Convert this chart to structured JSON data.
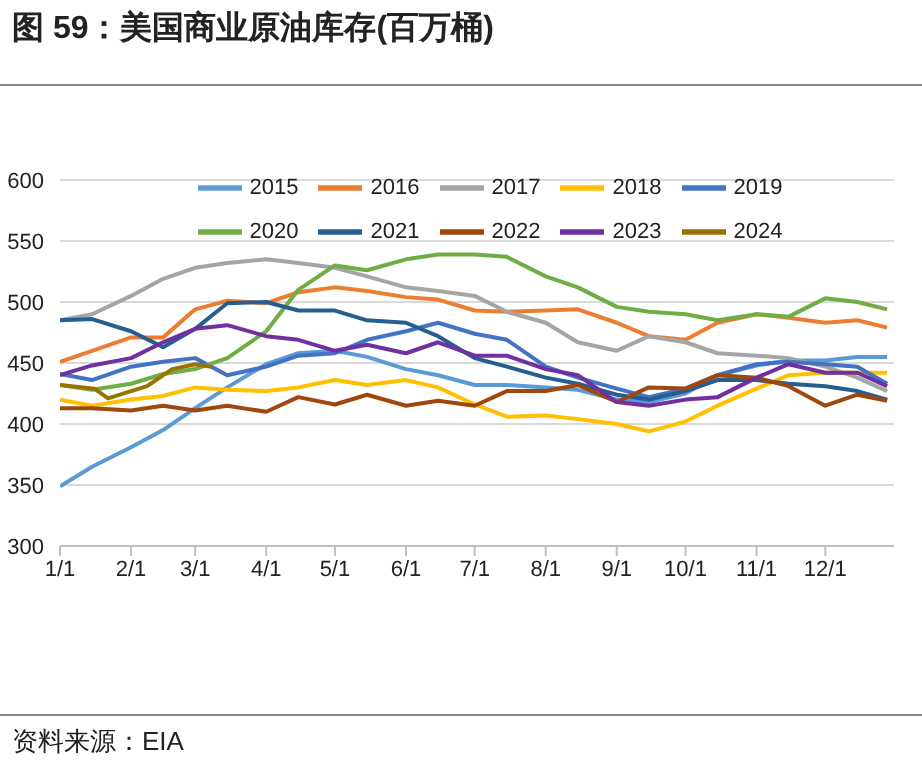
{
  "chart_data": {
    "type": "line",
    "title": "图 59：美国商业原油库存(百万桶)",
    "annotations": [
      "资料来源：EIA"
    ],
    "x": [
      "--01-01",
      "--01-15",
      "--02-01",
      "--02-15",
      "--03-01",
      "--03-15",
      "--04-01",
      "--04-15",
      "--05-01",
      "--05-15",
      "--06-01",
      "--06-15",
      "--07-01",
      "--07-15",
      "--08-01",
      "--08-15",
      "--09-01",
      "--09-15",
      "--10-01",
      "--10-15",
      "--11-01",
      "--11-15",
      "--12-01",
      "--12-15",
      "--12-28"
    ],
    "series": [
      {
        "name": "2015",
        "color": "#5b9bd5",
        "values": [
          349,
          365,
          381,
          395,
          413,
          430,
          449,
          458,
          460,
          455,
          445,
          440,
          432,
          432,
          430,
          428,
          420,
          418,
          425,
          440,
          448,
          452,
          452,
          455,
          455
        ]
      },
      {
        "name": "2016",
        "color": "#ed7d31",
        "values": [
          451,
          460,
          471,
          471,
          494,
          501,
          499,
          508,
          512,
          509,
          504,
          502,
          493,
          492,
          493,
          494,
          483,
          472,
          469,
          483,
          490,
          487,
          483,
          485,
          479
        ]
      },
      {
        "name": "2017",
        "color": "#a5a5a5",
        "values": [
          485,
          490,
          505,
          519,
          528,
          532,
          535,
          532,
          528,
          521,
          512,
          509,
          505,
          492,
          483,
          467,
          460,
          472,
          467,
          458,
          456,
          454,
          447,
          438,
          427
        ]
      },
      {
        "name": "2018",
        "color": "#ffc000",
        "values": [
          420,
          415,
          420,
          423,
          430,
          428,
          427,
          430,
          436,
          432,
          436,
          430,
          416,
          406,
          407,
          404,
          400,
          394,
          402,
          415,
          429,
          440,
          442,
          442,
          442
        ]
      },
      {
        "name": "2019",
        "color": "#4472c4",
        "values": [
          441,
          436,
          447,
          451,
          454,
          440,
          447,
          456,
          458,
          469,
          476,
          483,
          474,
          469,
          447,
          438,
          429,
          422,
          429,
          440,
          449,
          451,
          449,
          447,
          433
        ]
      },
      {
        "name": "2020",
        "color": "#70ad47",
        "values": [
          432,
          428,
          433,
          441,
          445,
          454,
          476,
          510,
          530,
          526,
          535,
          539,
          539,
          537,
          521,
          512,
          496,
          492,
          490,
          485,
          490,
          488,
          503,
          500,
          494
        ]
      },
      {
        "name": "2021",
        "color": "#255e91",
        "values": [
          485,
          486,
          476,
          463,
          478,
          499,
          500,
          493,
          493,
          485,
          483,
          472,
          454,
          447,
          438,
          433,
          424,
          420,
          427,
          436,
          436,
          433,
          431,
          427,
          420
        ]
      },
      {
        "name": "2022",
        "color": "#9e480e",
        "values": [
          413,
          413,
          411,
          415,
          411,
          415,
          410,
          422,
          416,
          424,
          415,
          419,
          415,
          427,
          427,
          432,
          418,
          430,
          429,
          440,
          438,
          431,
          415,
          424,
          419
        ]
      },
      {
        "name": "2023",
        "color": "#7030a0",
        "values": [
          440,
          448,
          454,
          467,
          478,
          481,
          472,
          469,
          460,
          465,
          458,
          467,
          456,
          456,
          445,
          440,
          418,
          415,
          420,
          422,
          438,
          449,
          442,
          442,
          431
        ]
      },
      {
        "name": "2024",
        "color": "#997300",
        "x": [
          "--01-01",
          "--01-16",
          "--01-22",
          "--02-08",
          "--02-19",
          "--03-01",
          "--03-08"
        ],
        "values": [
          432,
          429,
          421,
          431,
          445,
          449,
          447
        ]
      }
    ],
    "xlim": [
      "--01-01",
      "--12-31"
    ],
    "xticks": [
      {
        "value": "--01-01",
        "label": "1/1"
      },
      {
        "value": "--02-01",
        "label": "2/1"
      },
      {
        "value": "--03-01",
        "label": "3/1"
      },
      {
        "value": "--04-01",
        "label": "4/1"
      },
      {
        "value": "--05-01",
        "label": "5/1"
      },
      {
        "value": "--06-01",
        "label": "6/1"
      },
      {
        "value": "--07-01",
        "label": "7/1"
      },
      {
        "value": "--08-01",
        "label": "8/1"
      },
      {
        "value": "--09-01",
        "label": "9/1"
      },
      {
        "value": "--10-01",
        "label": "10/1"
      },
      {
        "value": "--11-01",
        "label": "11/1"
      },
      {
        "value": "--12-01",
        "label": "12/1"
      }
    ],
    "ylim": [
      300,
      600
    ],
    "yticks": [
      300,
      350,
      400,
      450,
      500,
      550,
      600
    ],
    "grid": "y",
    "legend": "top"
  }
}
